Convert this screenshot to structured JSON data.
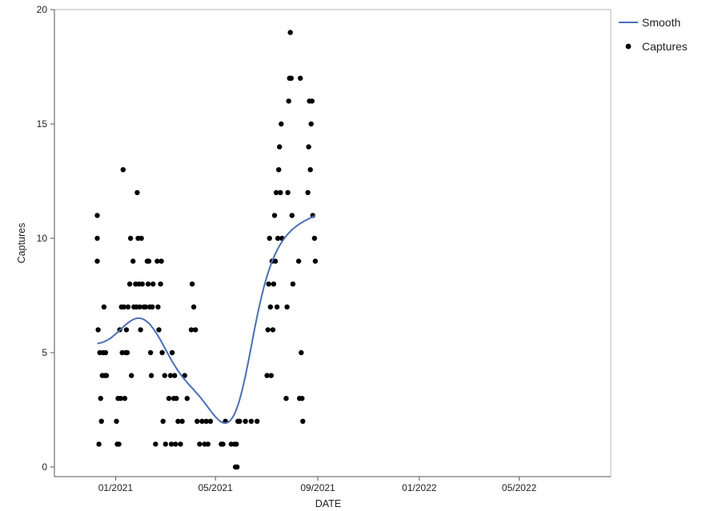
{
  "chart_data": {
    "type": "scatter",
    "xlabel": "DATE",
    "ylabel": "Captures",
    "ylim": [
      0,
      20
    ],
    "xlim": [
      "2020-11-01",
      "2022-07-25"
    ],
    "x_ticks": [
      {
        "date": "2021-01-01",
        "label": "01/2021"
      },
      {
        "date": "2021-05-01",
        "label": "05/2021"
      },
      {
        "date": "2021-09-01",
        "label": "09/2021"
      },
      {
        "date": "2022-01-01",
        "label": "01/2022"
      },
      {
        "date": "2022-05-01",
        "label": "05/2022"
      }
    ],
    "y_ticks": [
      0,
      5,
      10,
      15,
      20
    ],
    "grid": false,
    "legend": {
      "placement": "right",
      "entries": [
        {
          "label": "Smooth",
          "kind": "line",
          "color": "#4a6fb5"
        },
        {
          "label": "Captures",
          "kind": "marker",
          "color": "#000000"
        }
      ]
    },
    "series": [
      {
        "name": "Captures",
        "kind": "scatter",
        "color": "#000000",
        "points": [
          [
            "2020-12-10",
            11
          ],
          [
            "2020-12-10",
            10
          ],
          [
            "2020-12-10",
            9
          ],
          [
            "2020-12-11",
            6
          ],
          [
            "2020-12-12",
            1
          ],
          [
            "2020-12-13",
            5
          ],
          [
            "2020-12-14",
            3
          ],
          [
            "2020-12-15",
            2
          ],
          [
            "2020-12-16",
            4
          ],
          [
            "2020-12-17",
            5
          ],
          [
            "2020-12-18",
            7
          ],
          [
            "2020-12-19",
            4
          ],
          [
            "2020-12-20",
            5
          ],
          [
            "2020-12-21",
            4
          ],
          [
            "2021-01-02",
            2
          ],
          [
            "2021-01-03",
            1
          ],
          [
            "2021-01-04",
            3
          ],
          [
            "2021-01-05",
            1
          ],
          [
            "2021-01-06",
            6
          ],
          [
            "2021-01-07",
            3
          ],
          [
            "2021-01-08",
            7
          ],
          [
            "2021-01-09",
            5
          ],
          [
            "2021-01-10",
            13
          ],
          [
            "2021-01-11",
            7
          ],
          [
            "2021-01-12",
            3
          ],
          [
            "2021-01-13",
            5
          ],
          [
            "2021-01-14",
            6
          ],
          [
            "2021-01-15",
            5
          ],
          [
            "2021-01-16",
            7
          ],
          [
            "2021-01-18",
            8
          ],
          [
            "2021-01-19",
            10
          ],
          [
            "2021-01-20",
            4
          ],
          [
            "2021-01-22",
            9
          ],
          [
            "2021-01-23",
            7
          ],
          [
            "2021-01-25",
            8
          ],
          [
            "2021-01-26",
            7
          ],
          [
            "2021-01-27",
            12
          ],
          [
            "2021-01-28",
            10
          ],
          [
            "2021-01-29",
            8
          ],
          [
            "2021-01-30",
            7
          ],
          [
            "2021-01-31",
            6
          ],
          [
            "2021-02-01",
            10
          ],
          [
            "2021-02-02",
            8
          ],
          [
            "2021-02-04",
            7
          ],
          [
            "2021-02-06",
            7
          ],
          [
            "2021-02-08",
            9
          ],
          [
            "2021-02-09",
            8
          ],
          [
            "2021-02-10",
            9
          ],
          [
            "2021-02-11",
            7
          ],
          [
            "2021-02-12",
            5
          ],
          [
            "2021-02-13",
            4
          ],
          [
            "2021-02-14",
            7
          ],
          [
            "2021-02-15",
            8
          ],
          [
            "2021-02-18",
            1
          ],
          [
            "2021-02-20",
            9
          ],
          [
            "2021-02-21",
            7
          ],
          [
            "2021-02-22",
            6
          ],
          [
            "2021-02-24",
            8
          ],
          [
            "2021-02-25",
            9
          ],
          [
            "2021-02-26",
            5
          ],
          [
            "2021-02-27",
            2
          ],
          [
            "2021-03-01",
            4
          ],
          [
            "2021-03-02",
            1
          ],
          [
            "2021-03-06",
            3
          ],
          [
            "2021-03-08",
            4
          ],
          [
            "2021-03-09",
            1
          ],
          [
            "2021-03-10",
            5
          ],
          [
            "2021-03-12",
            3
          ],
          [
            "2021-03-13",
            4
          ],
          [
            "2021-03-14",
            1
          ],
          [
            "2021-03-15",
            3
          ],
          [
            "2021-03-17",
            2
          ],
          [
            "2021-03-20",
            1
          ],
          [
            "2021-03-22",
            2
          ],
          [
            "2021-03-25",
            4
          ],
          [
            "2021-03-28",
            3
          ],
          [
            "2021-04-02",
            6
          ],
          [
            "2021-04-03",
            8
          ],
          [
            "2021-04-05",
            7
          ],
          [
            "2021-04-07",
            6
          ],
          [
            "2021-04-09",
            2
          ],
          [
            "2021-04-12",
            1
          ],
          [
            "2021-04-15",
            2
          ],
          [
            "2021-04-18",
            1
          ],
          [
            "2021-04-20",
            2
          ],
          [
            "2021-04-22",
            1
          ],
          [
            "2021-04-25",
            2
          ],
          [
            "2021-05-08",
            1
          ],
          [
            "2021-05-10",
            1
          ],
          [
            "2021-05-13",
            2
          ],
          [
            "2021-05-20",
            1
          ],
          [
            "2021-05-24",
            1
          ],
          [
            "2021-05-25",
            0
          ],
          [
            "2021-05-26",
            1
          ],
          [
            "2021-05-27",
            0
          ],
          [
            "2021-05-28",
            2
          ],
          [
            "2021-05-30",
            2
          ],
          [
            "2021-06-06",
            2
          ],
          [
            "2021-06-13",
            2
          ],
          [
            "2021-06-20",
            2
          ],
          [
            "2021-07-02",
            4
          ],
          [
            "2021-07-03",
            6
          ],
          [
            "2021-07-04",
            8
          ],
          [
            "2021-07-05",
            10
          ],
          [
            "2021-07-06",
            7
          ],
          [
            "2021-07-07",
            4
          ],
          [
            "2021-07-08",
            9
          ],
          [
            "2021-07-09",
            6
          ],
          [
            "2021-07-10",
            8
          ],
          [
            "2021-07-11",
            11
          ],
          [
            "2021-07-12",
            9
          ],
          [
            "2021-07-13",
            12
          ],
          [
            "2021-07-14",
            7
          ],
          [
            "2021-07-15",
            10
          ],
          [
            "2021-07-16",
            13
          ],
          [
            "2021-07-17",
            14
          ],
          [
            "2021-07-18",
            12
          ],
          [
            "2021-07-19",
            15
          ],
          [
            "2021-07-20",
            10
          ],
          [
            "2021-07-25",
            3
          ],
          [
            "2021-07-26",
            7
          ],
          [
            "2021-07-27",
            12
          ],
          [
            "2021-07-28",
            16
          ],
          [
            "2021-07-29",
            17
          ],
          [
            "2021-07-30",
            19
          ],
          [
            "2021-07-31",
            17
          ],
          [
            "2021-08-01",
            11
          ],
          [
            "2021-08-02",
            8
          ],
          [
            "2021-08-09",
            9
          ],
          [
            "2021-08-10",
            3
          ],
          [
            "2021-08-11",
            17
          ],
          [
            "2021-08-12",
            5
          ],
          [
            "2021-08-13",
            3
          ],
          [
            "2021-08-14",
            2
          ],
          [
            "2021-08-20",
            12
          ],
          [
            "2021-08-21",
            14
          ],
          [
            "2021-08-22",
            16
          ],
          [
            "2021-08-23",
            13
          ],
          [
            "2021-08-24",
            15
          ],
          [
            "2021-08-25",
            16
          ],
          [
            "2021-08-26",
            11
          ],
          [
            "2021-08-28",
            10
          ],
          [
            "2021-08-29",
            9
          ]
        ]
      }
    ]
  }
}
